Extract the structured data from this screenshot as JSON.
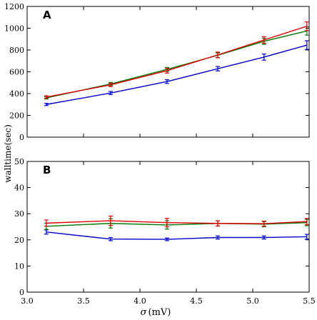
{
  "ylabel": "walltime(sec)",
  "xlabel_symbol": "σ",
  "xlabel_unit": "(mV)",
  "colors": {
    "blue": "#0000cc",
    "green": "#007a00",
    "red": "#e00000"
  },
  "x_ticks": [
    "3.0",
    "3.5",
    "4.0",
    "4.5",
    "5.0",
    "5.5"
  ],
  "chart_data": [
    {
      "type": "line",
      "panel": "A",
      "x": [
        3.17,
        3.74,
        4.24,
        4.69,
        5.1,
        5.48
      ],
      "xlim": [
        3.0,
        5.5
      ],
      "ylim": [
        0,
        1200
      ],
      "yticks": [
        0,
        200,
        400,
        600,
        800,
        1000,
        1200
      ],
      "series": [
        {
          "color": "blue",
          "values": [
            300,
            405,
            510,
            628,
            735,
            845
          ],
          "err": [
            10,
            14,
            17,
            20,
            28,
            40
          ]
        },
        {
          "color": "green",
          "values": [
            360,
            488,
            622,
            752,
            880,
            975
          ],
          "err": [
            10,
            14,
            18,
            22,
            28,
            38
          ]
        },
        {
          "color": "red",
          "values": [
            368,
            480,
            610,
            755,
            892,
            1018
          ],
          "err": [
            12,
            16,
            22,
            26,
            30,
            40
          ]
        }
      ]
    },
    {
      "type": "line",
      "panel": "B",
      "x": [
        3.17,
        3.74,
        4.24,
        4.69,
        5.1,
        5.48
      ],
      "xlim": [
        3.0,
        5.5
      ],
      "ylim": [
        0,
        50
      ],
      "yticks": [
        0,
        10,
        20,
        30,
        40,
        50
      ],
      "series": [
        {
          "color": "blue",
          "values": [
            23.0,
            20.3,
            20.2,
            20.9,
            20.9,
            21.2
          ],
          "err": [
            0.8,
            0.6,
            0.5,
            0.6,
            0.6,
            0.9
          ]
        },
        {
          "color": "green",
          "values": [
            25.2,
            26.3,
            25.7,
            26.3,
            26.0,
            26.6
          ],
          "err": [
            1.2,
            1.8,
            1.6,
            1.0,
            1.0,
            1.2
          ]
        },
        {
          "color": "red",
          "values": [
            26.4,
            27.3,
            26.6,
            26.3,
            26.2,
            27.0
          ],
          "err": [
            1.2,
            1.8,
            1.6,
            1.0,
            1.0,
            1.2
          ]
        }
      ]
    }
  ]
}
